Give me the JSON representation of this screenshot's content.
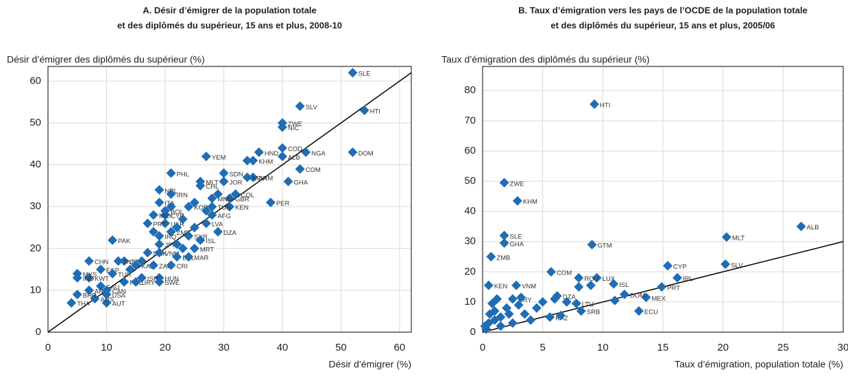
{
  "chart_data": [
    {
      "type": "scatter",
      "title": [
        "A. Désir d’émigrer de la population totale",
        "et des diplômés du supérieur, 15 ans et plus, 2008-10"
      ],
      "y_label": "Désir d’émigrer des diplômés du supérieur (%)",
      "x_label": "Désir d’émigrer (%)",
      "xlim": [
        0,
        62
      ],
      "ylim": [
        0,
        63.5
      ],
      "xticks": [
        0,
        10,
        20,
        30,
        40,
        50,
        60
      ],
      "yticks": [
        0,
        10,
        20,
        30,
        40,
        50,
        60
      ],
      "grid": true,
      "diagonal": true,
      "color": "#1f6db5",
      "labels": [
        "SLE",
        "HTI",
        "DOM",
        "SLV",
        "ZWE",
        "NIC",
        "NGA",
        "COD",
        "ALB",
        "HND",
        "KHM",
        "COM",
        "GHA",
        "ARM",
        "MDA",
        "PER",
        "YEM",
        "SDN",
        "JOR",
        "COL",
        "GBR",
        "KEN",
        "MLT",
        "CHL",
        "PHL",
        "NPL",
        "IRN",
        "KOR",
        "MNG",
        "TUN",
        "AFG",
        "LVA",
        "ITA",
        "BOL",
        "CYP",
        "MEX",
        "UKR",
        "ZMB",
        "PRT",
        "SYR",
        "DZA",
        "ISL",
        "MRT",
        "IRQ",
        "JPN",
        "PAK",
        "DNK",
        "VNM",
        "QAT",
        "RUS",
        "KAZ",
        "CHN",
        "ZAF",
        "BEL",
        "CRI",
        "HUN",
        "MAR",
        "ISR*",
        "ESP",
        "KWT",
        "MYS",
        "IND",
        "TUR",
        "POL",
        "SAU",
        "ARE",
        "USA",
        "CAN",
        "AUT",
        "AUS",
        "BHR",
        "THA",
        "SWE",
        "URY",
        null,
        null,
        null,
        null,
        null,
        null,
        null,
        null,
        null,
        null,
        null,
        null,
        null
      ],
      "x": [
        52,
        54,
        52,
        43,
        40,
        40,
        44,
        40,
        40,
        36,
        35,
        43,
        41,
        35,
        34,
        38,
        27,
        30,
        30,
        32,
        31,
        31,
        26,
        26,
        21,
        19,
        21,
        24,
        28,
        28,
        28,
        27,
        19,
        20,
        20,
        18,
        20,
        21,
        17,
        24,
        29,
        26,
        25,
        19,
        19,
        11,
        17,
        19,
        13,
        12,
        15,
        7,
        18,
        22,
        21,
        19,
        24,
        16,
        9,
        7,
        5,
        5,
        11,
        13,
        9,
        7,
        10,
        10,
        10,
        8,
        5,
        4,
        19,
        15,
        23,
        22,
        25,
        23,
        21,
        25,
        22,
        18,
        14,
        16,
        29,
        34,
        27
      ],
      "values": [
        62,
        53,
        43,
        54,
        50,
        49,
        43,
        44,
        42,
        43,
        41,
        39,
        36,
        37,
        37,
        31,
        42,
        38,
        36,
        33,
        32,
        30,
        36,
        35,
        38,
        34,
        33,
        30,
        32,
        30,
        28,
        26,
        31,
        29,
        28,
        28,
        26,
        24,
        26,
        23,
        24,
        22,
        20,
        23,
        21,
        22,
        19,
        19,
        17,
        17,
        16,
        17,
        16,
        18,
        16,
        13,
        18,
        13,
        15,
        13,
        14,
        13,
        14,
        12,
        11,
        10,
        9,
        10,
        7,
        8,
        9,
        7,
        12,
        12,
        20,
        21,
        25,
        27,
        30,
        31,
        25,
        24,
        15,
        17,
        33,
        41,
        29
      ]
    },
    {
      "type": "scatter",
      "title": [
        "B. Taux d’émigration vers les pays de l’OCDE de la population totale",
        "et des diplômés du supérieur, 15 ans et plus, 2005/06"
      ],
      "y_label": "Taux d’émigration des diplômés du supérieur (%)",
      "x_label": "Taux d’émigration, population totale (%)",
      "xlim": [
        0,
        30
      ],
      "ylim": [
        0,
        88
      ],
      "xticks": [
        0,
        5,
        10,
        15,
        20,
        25,
        30
      ],
      "yticks": [
        0,
        10,
        20,
        30,
        40,
        50,
        60,
        70,
        80
      ],
      "grid": true,
      "diagonal": true,
      "color": "#1f6db5",
      "labels": [
        "HTI",
        "ZWE",
        "KHM",
        "SLE",
        "GHA",
        "GTM",
        "ZMB",
        "ALB",
        "MLT",
        "CYP",
        "SLV",
        "IRL",
        "PRT",
        "MEX",
        "DOM",
        "ISL",
        "LUX",
        "ROU",
        "COM",
        "KEN",
        "VNM",
        "URY",
        "DZA",
        "LTU",
        "ECU",
        "SRB",
        "KAZ",
        null,
        null,
        null,
        null,
        null,
        null,
        null,
        null,
        null,
        null,
        null,
        null,
        null,
        null,
        null,
        null,
        null,
        null,
        null,
        null,
        null,
        null,
        null,
        null,
        null
      ],
      "x": [
        9.3,
        1.8,
        2.9,
        1.8,
        1.8,
        9.1,
        0.7,
        26.5,
        20.3,
        15.4,
        20.2,
        16.2,
        14.9,
        13.6,
        11.8,
        10.9,
        9.5,
        8,
        5.7,
        0.5,
        2.8,
        2.5,
        6.2,
        7.8,
        13,
        8.2,
        5.6,
        9,
        8,
        11,
        5,
        4.5,
        3.5,
        3,
        2,
        1.5,
        1,
        0.5,
        0.3,
        0.2,
        1,
        2.5,
        4,
        6.5,
        7,
        6,
        1.2,
        0.8,
        2.2,
        3.2,
        1.5,
        0.6
      ],
      "values": [
        75.5,
        49.5,
        43.5,
        32,
        29.5,
        29,
        25,
        35,
        31.5,
        22,
        22.5,
        18,
        15,
        11.5,
        12.5,
        16,
        18,
        18,
        20,
        15.5,
        15.5,
        11,
        12,
        9.5,
        7,
        7,
        5,
        15.5,
        15,
        10.5,
        10,
        8,
        6,
        9,
        8,
        5,
        4,
        3,
        1,
        2,
        7,
        3,
        4,
        5.5,
        10,
        11,
        11,
        9.5,
        6,
        11.5,
        2,
        6
      ]
    }
  ]
}
